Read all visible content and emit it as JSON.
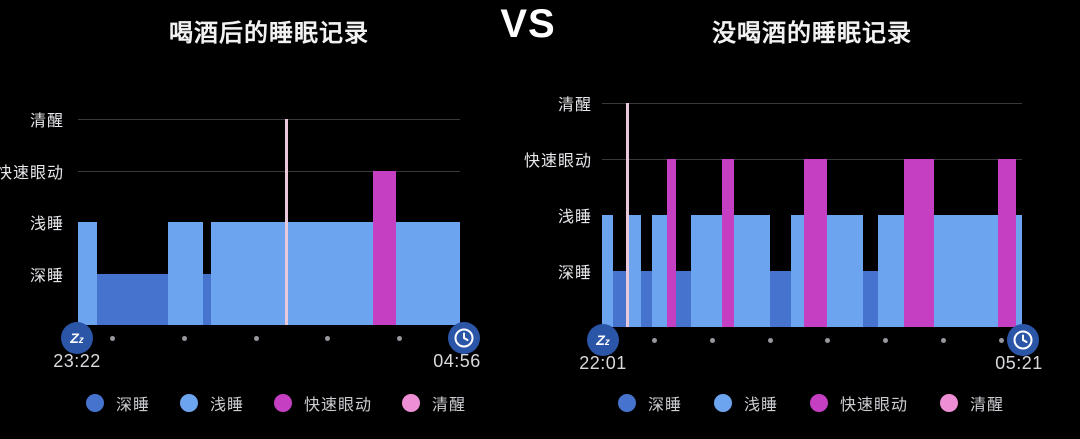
{
  "header": {
    "left_title": "喝酒后的睡眠记录",
    "vs": "VS",
    "right_title": "没喝酒的睡眠记录"
  },
  "colors": {
    "background": "#000000",
    "deep": "#4573cd",
    "light": "#6ca4ef",
    "rem": "#c53fc3",
    "awake": "#ee8fd6",
    "awake_line": "#e8c8da",
    "grid": "#38383e",
    "icon_circle": "#2b56a8",
    "axis_dot": "#97979d"
  },
  "legend": {
    "items": [
      {
        "label": "深睡",
        "stage": "deep"
      },
      {
        "label": "浅睡",
        "stage": "light"
      },
      {
        "label": "快速眼动",
        "stage": "rem"
      },
      {
        "label": "清醒",
        "stage": "awake"
      }
    ]
  },
  "icons": {
    "sleep_start": "zz-icon",
    "wake_time": "clock-icon",
    "zz_text": "Zz"
  },
  "chart_data": [
    {
      "type": "bar",
      "subtype": "sleep-hypnogram",
      "title": "喝酒后的睡眠记录",
      "ylabels": [
        "清醒",
        "快速眼动",
        "浅睡",
        "深睡"
      ],
      "start_time": "23:22",
      "end_time": "04:56",
      "axis_dot_count": 5,
      "grid_levels": [
        "awake",
        "rem"
      ],
      "stage_levels": {
        "awake": 0.0,
        "rem": 0.25,
        "light": 0.5,
        "deep": 0.75
      },
      "segments": [
        {
          "x": 0.0,
          "w": 0.05,
          "stage": "light"
        },
        {
          "x": 0.05,
          "w": 0.186,
          "stage": "deep"
        },
        {
          "x": 0.236,
          "w": 0.092,
          "stage": "light"
        },
        {
          "x": 0.328,
          "w": 0.021,
          "stage": "deep"
        },
        {
          "x": 0.349,
          "w": 0.193,
          "stage": "light"
        },
        {
          "x": 0.542,
          "w": 0.008,
          "stage": "awake"
        },
        {
          "x": 0.55,
          "w": 0.222,
          "stage": "light"
        },
        {
          "x": 0.772,
          "w": 0.06,
          "stage": "rem"
        },
        {
          "x": 0.832,
          "w": 0.168,
          "stage": "light"
        }
      ]
    },
    {
      "type": "bar",
      "subtype": "sleep-hypnogram",
      "title": "没喝酒的睡眠记录",
      "ylabels": [
        "清醒",
        "快速眼动",
        "浅睡",
        "深睡"
      ],
      "start_time": "22:01",
      "end_time": "05:21",
      "axis_dot_count": 7,
      "grid_levels": [
        "awake",
        "rem"
      ],
      "stage_levels": {
        "awake": 0.0,
        "rem": 0.25,
        "light": 0.5,
        "deep": 0.75
      },
      "segments": [
        {
          "x": 0.0,
          "w": 0.026,
          "stage": "light"
        },
        {
          "x": 0.026,
          "w": 0.031,
          "stage": "deep"
        },
        {
          "x": 0.057,
          "w": 0.007,
          "stage": "awake"
        },
        {
          "x": 0.064,
          "w": 0.029,
          "stage": "light"
        },
        {
          "x": 0.093,
          "w": 0.026,
          "stage": "deep"
        },
        {
          "x": 0.119,
          "w": 0.036,
          "stage": "light"
        },
        {
          "x": 0.155,
          "w": 0.021,
          "stage": "rem"
        },
        {
          "x": 0.176,
          "w": 0.036,
          "stage": "deep"
        },
        {
          "x": 0.212,
          "w": 0.074,
          "stage": "light"
        },
        {
          "x": 0.286,
          "w": 0.029,
          "stage": "rem"
        },
        {
          "x": 0.315,
          "w": 0.086,
          "stage": "light"
        },
        {
          "x": 0.401,
          "w": 0.05,
          "stage": "deep"
        },
        {
          "x": 0.451,
          "w": 0.029,
          "stage": "light"
        },
        {
          "x": 0.48,
          "w": 0.055,
          "stage": "rem"
        },
        {
          "x": 0.535,
          "w": 0.086,
          "stage": "light"
        },
        {
          "x": 0.621,
          "w": 0.036,
          "stage": "deep"
        },
        {
          "x": 0.657,
          "w": 0.062,
          "stage": "light"
        },
        {
          "x": 0.719,
          "w": 0.071,
          "stage": "rem"
        },
        {
          "x": 0.79,
          "w": 0.152,
          "stage": "light"
        },
        {
          "x": 0.942,
          "w": 0.043,
          "stage": "rem"
        },
        {
          "x": 0.985,
          "w": 0.015,
          "stage": "light"
        }
      ]
    }
  ]
}
